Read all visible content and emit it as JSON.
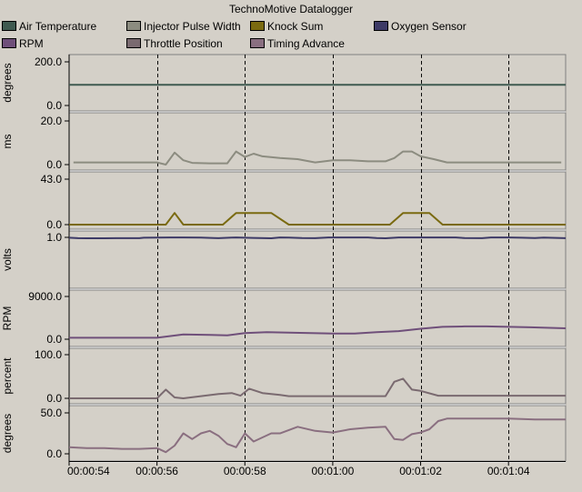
{
  "app": {
    "title": "TechnoMotive Datalogger"
  },
  "chart_data": {
    "type": "line",
    "x_axis": {
      "unit": "time",
      "range": [
        "00:00:54",
        "00:01:05.3"
      ],
      "tick_labels": [
        "00:00:54",
        "00:00:56",
        "00:00:58",
        "00:01:00",
        "00:01:02",
        "00:01:04"
      ]
    },
    "legend": {
      "placement": "top",
      "items": [
        {
          "name": "Air Temperature",
          "color": "#3f5a50"
        },
        {
          "name": "Injector Pulse Width",
          "color": "#8c8c80"
        },
        {
          "name": "Knock Sum",
          "color": "#7a6a10"
        },
        {
          "name": "Oxygen Sensor",
          "color": "#3d3a66"
        },
        {
          "name": "RPM",
          "color": "#6f4f7a"
        },
        {
          "name": "Throttle Position",
          "color": "#7a6a70"
        },
        {
          "name": "Timing Advance",
          "color": "#8a6f80"
        }
      ]
    },
    "grid": {
      "vertical_dashed": true
    },
    "panels": [
      {
        "series": "Air Temperature",
        "ylabel": "degrees",
        "ylim": [
          0,
          200
        ],
        "ytick_labels": [
          "200.0",
          "0.0"
        ],
        "color": "#3f5a50",
        "x": [
          "00:00:54",
          "00:01:05.3"
        ],
        "values": [
          95,
          95
        ]
      },
      {
        "series": "Injector Pulse Width",
        "ylabel": "ms",
        "ylim": [
          0,
          20
        ],
        "ytick_labels": [
          "20.0",
          "0.0"
        ],
        "color": "#8c8c80",
        "x": [
          "00:00:54.1",
          "00:00:54.6",
          "00:00:55",
          "00:00:55.5",
          "00:00:56",
          "00:00:56.2",
          "00:00:56.4",
          "00:00:56.6",
          "00:00:56.8",
          "00:00:57.2",
          "00:00:57.6",
          "00:00:57.8",
          "00:00:58",
          "00:00:58.2",
          "00:00:58.4",
          "00:00:58.8",
          "00:00:59.2",
          "00:00:59.6",
          "00:01:00",
          "00:01:00.4",
          "00:01:00.8",
          "00:01:01.2",
          "00:01:01.4",
          "00:01:01.6",
          "00:01:01.8",
          "00:01:02",
          "00:01:02.3",
          "00:01:02.6",
          "00:01:03",
          "00:01:03.5",
          "00:01:04",
          "00:01:05.2"
        ],
        "values": [
          1,
          1,
          1,
          1,
          1,
          0,
          5.5,
          2,
          0.8,
          0.6,
          0.6,
          6,
          3.5,
          5,
          3.8,
          3,
          2.5,
          1,
          2,
          2,
          1.5,
          1.5,
          3,
          6,
          6,
          3.8,
          2.5,
          1,
          1,
          1,
          1,
          1
        ]
      },
      {
        "series": "Knock Sum",
        "ylabel": "",
        "ylim": [
          0,
          43
        ],
        "ytick_labels": [
          "43.0",
          "0.0"
        ],
        "color": "#7a6a10",
        "x": [
          "00:00:54",
          "00:00:56.2",
          "00:00:56.4",
          "00:00:56.6",
          "00:00:57.5",
          "00:00:57.8",
          "00:00:58.6",
          "00:00:59",
          "00:01:01.3",
          "00:01:01.6",
          "00:01:02.2",
          "00:01:02.5",
          "00:01:05.3"
        ],
        "values": [
          0,
          0,
          11,
          0,
          0,
          11,
          11,
          0,
          0,
          11,
          11,
          0,
          0
        ]
      },
      {
        "series": "Oxygen Sensor",
        "ylabel": "volts",
        "ylim": [
          0,
          1
        ],
        "ytick_labels": [
          "1.0"
        ],
        "color": "#3d3a66",
        "x": [
          "00:00:54",
          "00:00:54.2",
          "00:00:54.4",
          "00:00:54.8",
          "00:00:55.2",
          "00:00:55.6",
          "00:00:55.7",
          "00:00:56",
          "00:00:56.3",
          "00:00:56.6",
          "00:00:57",
          "00:00:57.3",
          "00:00:57.4",
          "00:00:57.7",
          "00:00:57.8",
          "00:00:58",
          "00:00:58.2",
          "00:00:58.6",
          "00:00:58.8",
          "00:00:59",
          "00:00:59.3",
          "00:00:59.6",
          "00:00:59.9",
          "00:01:00",
          "00:01:00.2",
          "00:01:00.5",
          "00:01:00.8",
          "00:01:01",
          "00:01:01.2",
          "00:01:01.5",
          "00:01:01.8",
          "00:01:02.2",
          "00:01:02.3",
          "00:01:02.8",
          "00:01:03",
          "00:01:03.4",
          "00:01:03.6",
          "00:01:04",
          "00:01:04.3",
          "00:01:04.6",
          "00:01:04.8",
          "00:01:05.3"
        ],
        "values": [
          0.55,
          0.12,
          0.02,
          0.03,
          0.05,
          0.08,
          0.65,
          0.74,
          0.88,
          0.9,
          0.8,
          0.2,
          0.12,
          0.82,
          0.92,
          0.55,
          0.35,
          0.03,
          0.85,
          0.82,
          0.2,
          0.12,
          0.88,
          0.92,
          0.9,
          0.94,
          0.85,
          0.3,
          0.02,
          0.85,
          0.95,
          0.92,
          0.9,
          0.92,
          0.2,
          0.08,
          0.85,
          0.9,
          0.55,
          0.25,
          0.75,
          0.1
        ]
      },
      {
        "series": "RPM",
        "ylabel": "RPM",
        "ylim": [
          0,
          9000
        ],
        "ytick_labels": [
          "9000.0",
          "0.0"
        ],
        "color": "#6f4f7a",
        "x": [
          "00:00:54",
          "00:00:56",
          "00:00:56.6",
          "00:00:57.2",
          "00:00:57.6",
          "00:00:58",
          "00:00:58.5",
          "00:00:59",
          "00:00:59.5",
          "00:01:00",
          "00:01:00.5",
          "00:01:01",
          "00:01:01.5",
          "00:01:02",
          "00:01:02.5",
          "00:01:03",
          "00:01:03.5",
          "00:01:04",
          "00:01:04.5",
          "00:01:05.3"
        ],
        "values": [
          300,
          300,
          1000,
          900,
          800,
          1300,
          1500,
          1400,
          1300,
          1200,
          1200,
          1500,
          1700,
          2200,
          2600,
          2700,
          2700,
          2600,
          2500,
          2300
        ]
      },
      {
        "series": "Throttle Position",
        "ylabel": "percent",
        "ylim": [
          0,
          100
        ],
        "ytick_labels": [
          "100.0",
          "0.0"
        ],
        "color": "#7a6a70",
        "x": [
          "00:00:54",
          "00:00:56",
          "00:00:56.2",
          "00:00:56.4",
          "00:00:56.6",
          "00:00:57.4",
          "00:00:57.7",
          "00:00:57.9",
          "00:00:58.1",
          "00:00:58.4",
          "00:00:58.8",
          "00:00:59",
          "00:00:59.5",
          "00:01:00",
          "00:01:01.2",
          "00:01:01.4",
          "00:01:01.6",
          "00:01:01.8",
          "00:01:02",
          "00:01:02.4",
          "00:01:05.3"
        ],
        "values": [
          0,
          0,
          20,
          2,
          0,
          10,
          12,
          6,
          22,
          12,
          8,
          5,
          5,
          5,
          5,
          38,
          45,
          20,
          17,
          6,
          6
        ]
      },
      {
        "series": "Timing Advance",
        "ylabel": "degrees",
        "ylim": [
          0,
          50
        ],
        "ytick_labels": [
          "50.0",
          "0.0"
        ],
        "color": "#8a6f80",
        "x": [
          "00:00:54",
          "00:00:54.4",
          "00:00:54.8",
          "00:00:55.2",
          "00:00:55.6",
          "00:00:56",
          "00:00:56.2",
          "00:00:56.4",
          "00:00:56.6",
          "00:00:56.8",
          "00:00:57",
          "00:00:57.2",
          "00:00:57.4",
          "00:00:57.6",
          "00:00:57.8",
          "00:00:58",
          "00:00:58.2",
          "00:00:58.4",
          "00:00:58.6",
          "00:00:58.8",
          "00:00:59.2",
          "00:00:59.6",
          "00:01:00",
          "00:01:00.4",
          "00:01:00.8",
          "00:01:01.2",
          "00:01:01.4",
          "00:01:01.6",
          "00:01:01.8",
          "00:01:02",
          "00:01:02.2",
          "00:01:02.4",
          "00:01:02.6",
          "00:01:03",
          "00:01:04",
          "00:01:04.6",
          "00:01:05.3"
        ],
        "values": [
          8,
          7,
          7,
          6,
          6,
          7,
          2,
          10,
          25,
          18,
          25,
          28,
          22,
          12,
          8,
          25,
          15,
          20,
          25,
          25,
          33,
          28,
          26,
          30,
          32,
          33,
          18,
          17,
          24,
          26,
          30,
          40,
          43,
          43,
          43,
          42,
          42
        ]
      }
    ]
  }
}
